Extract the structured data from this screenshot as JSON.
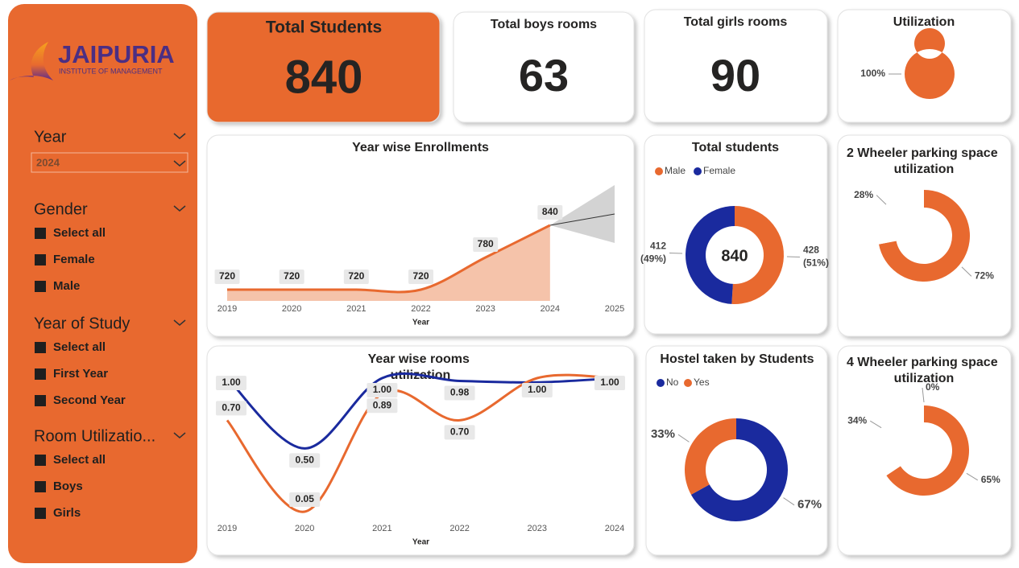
{
  "sidebar": {
    "logo": {
      "name": "JAIPURIA",
      "subtitle": "INSTITUTE OF MANAGEMENT"
    },
    "filters": [
      {
        "title": "Year",
        "selected": "2024"
      },
      {
        "title": "Gender",
        "options": [
          "Select all",
          "Female",
          "Male"
        ]
      },
      {
        "title": "Year of Study",
        "options": [
          "Select all",
          "First Year",
          "Second Year"
        ]
      },
      {
        "title": "Room Utilizatio...",
        "options": [
          "Select all",
          "Boys",
          "Girls"
        ]
      }
    ]
  },
  "cards": [
    {
      "title": "Total Students",
      "value": 840
    },
    {
      "title": "Total boys rooms",
      "value": 63
    },
    {
      "title": "Total girls rooms",
      "value": 90
    }
  ],
  "chart_data": [
    {
      "type": "pie",
      "title": "Utilization",
      "values": [
        100
      ],
      "value_labels": [
        "100%"
      ],
      "colors": [
        "#E8692F"
      ]
    },
    {
      "type": "area",
      "title": "Year wise Enrollments",
      "x_label": "Year",
      "categories": [
        "2019",
        "2020",
        "2021",
        "2022",
        "2023",
        "2024",
        "2025"
      ],
      "values": [
        720,
        720,
        720,
        720,
        780,
        840,
        null
      ],
      "color": "#E8692F",
      "fill": "#F5C3AA"
    },
    {
      "type": "pie",
      "title": "Total students",
      "categories": [
        "Male",
        "Female"
      ],
      "values": [
        428,
        412
      ],
      "percent_labels": [
        "(51%)",
        "(49%)"
      ],
      "total": 840,
      "colors": [
        "#E8692F",
        "#1A2A9E"
      ]
    },
    {
      "type": "pie",
      "title": "2 Wheeler parking space utilization",
      "values": [
        72,
        28
      ],
      "value_labels": [
        "72%",
        "28%"
      ],
      "colors": [
        "#E8692F",
        "#ffffff"
      ]
    },
    {
      "type": "line",
      "title": "Year wise rooms utilization",
      "x_label": "Year",
      "categories": [
        "2019",
        "2020",
        "2021",
        "2022",
        "2023",
        "2024"
      ],
      "series": [
        {
          "color": "#1A2A9E",
          "values": [
            1,
            0.5,
            1,
            0.98,
            0.97,
            1
          ],
          "value_labels": [
            "1.00",
            "0.50",
            "1.00",
            "0.98",
            null,
            "1.00"
          ]
        },
        {
          "color": "#E8692F",
          "values": [
            0.7,
            0.05,
            0.89,
            0.7,
            1,
            1
          ],
          "value_labels": [
            "0.70",
            "0.05",
            "0.89",
            "0.70",
            "1.00",
            null
          ]
        }
      ]
    },
    {
      "type": "pie",
      "title": "Hostel taken by Students",
      "categories": [
        "No",
        "Yes"
      ],
      "values": [
        67,
        33
      ],
      "value_labels": [
        "67%",
        "33%"
      ],
      "colors": [
        "#1A2A9E",
        "#E8692F"
      ]
    },
    {
      "type": "pie",
      "title": "4 Wheeler parking space utilization",
      "values": [
        65,
        34,
        0
      ],
      "value_labels": [
        "65%",
        "34%",
        "0%"
      ],
      "colors": [
        "#E8692F",
        "#ffffff",
        "#ffffff"
      ]
    }
  ]
}
